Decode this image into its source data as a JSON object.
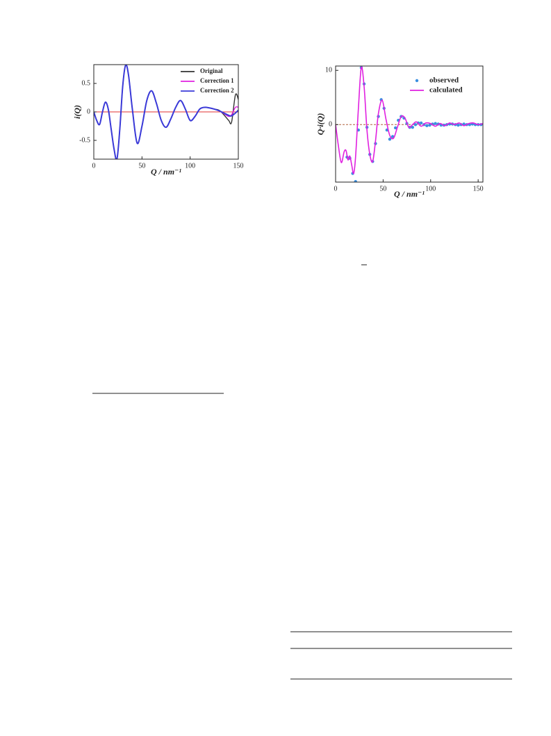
{
  "chart_data": [
    {
      "type": "line",
      "xlabel": "Q / nm⁻¹",
      "ylabel": "i(Q)",
      "xlim": [
        0,
        150
      ],
      "ylim": [
        -0.83,
        0.83
      ],
      "xticks": [
        0,
        50,
        100,
        150
      ],
      "yticks": [
        -0.5,
        0,
        0.5
      ],
      "hline": 0,
      "hline_color": "#e03030",
      "legend": "upper right",
      "series": [
        {
          "name": "Original",
          "color": "#333333",
          "mode": "line",
          "x": [
            0,
            3,
            6,
            9,
            12,
            15,
            18,
            21,
            24,
            27,
            30,
            33,
            36,
            40,
            45,
            50,
            55,
            60,
            65,
            70,
            75,
            80,
            85,
            90,
            95,
            100,
            105,
            110,
            115,
            120,
            125,
            130,
            135,
            140,
            143,
            147,
            150
          ],
          "values": [
            0,
            -0.15,
            -0.22,
            0,
            0.17,
            0.05,
            -0.3,
            -0.65,
            -0.83,
            -0.3,
            0.45,
            0.82,
            0.65,
            0.05,
            -0.55,
            -0.25,
            0.2,
            0.37,
            0.15,
            -0.15,
            -0.27,
            -0.12,
            0.08,
            0.2,
            0.05,
            -0.15,
            -0.08,
            0.05,
            0.08,
            0.07,
            0.05,
            0.03,
            -0.05,
            -0.15,
            -0.18,
            0.3,
            0.22
          ]
        },
        {
          "name": "Correction 1",
          "color": "#e020e0",
          "mode": "line",
          "x": [
            0,
            3,
            6,
            9,
            12,
            15,
            18,
            21,
            24,
            27,
            30,
            33,
            36,
            40,
            45,
            50,
            55,
            60,
            65,
            70,
            75,
            80,
            85,
            90,
            95,
            100,
            105,
            110,
            115,
            120,
            125,
            130,
            135,
            140,
            143,
            147,
            150
          ],
          "values": [
            0,
            -0.15,
            -0.22,
            0,
            0.17,
            0.05,
            -0.3,
            -0.65,
            -0.83,
            -0.3,
            0.45,
            0.82,
            0.65,
            0.05,
            -0.55,
            -0.25,
            0.2,
            0.37,
            0.15,
            -0.15,
            -0.27,
            -0.12,
            0.08,
            0.2,
            0.05,
            -0.15,
            -0.08,
            0.05,
            0.08,
            0.07,
            0.05,
            0.02,
            -0.03,
            -0.08,
            -0.05,
            0.08,
            0.08
          ]
        },
        {
          "name": "Correction 2",
          "color": "#3a3ad8",
          "mode": "line",
          "x": [
            0,
            3,
            6,
            9,
            12,
            15,
            18,
            21,
            24,
            27,
            30,
            33,
            36,
            40,
            45,
            50,
            55,
            60,
            65,
            70,
            75,
            80,
            85,
            90,
            95,
            100,
            105,
            110,
            115,
            120,
            125,
            130,
            135,
            140,
            143,
            147,
            150
          ],
          "values": [
            0,
            -0.15,
            -0.22,
            0,
            0.17,
            0.05,
            -0.3,
            -0.65,
            -0.83,
            -0.3,
            0.45,
            0.82,
            0.65,
            0.05,
            -0.55,
            -0.25,
            0.2,
            0.37,
            0.15,
            -0.15,
            -0.27,
            -0.12,
            0.08,
            0.2,
            0.05,
            -0.15,
            -0.08,
            0.05,
            0.08,
            0.07,
            0.05,
            0.02,
            -0.02,
            -0.06,
            -0.07,
            -0.02,
            0.03
          ]
        }
      ]
    },
    {
      "type": "line",
      "xlabel": "Q / nm⁻¹",
      "ylabel": "Q·i(Q)",
      "xlim": [
        0,
        155
      ],
      "ylim": [
        -10.6,
        10.8
      ],
      "xticks": [
        0,
        50,
        100,
        150
      ],
      "yticks": [
        0,
        10
      ],
      "hline": 0,
      "hline_color": "#b0603a",
      "legend": "upper right",
      "series": [
        {
          "name": "observed",
          "color": "#3b8fe0",
          "mode": "markers",
          "x": [
            12,
            15,
            18,
            21,
            24,
            27,
            30,
            33,
            36,
            39,
            42,
            45,
            48,
            51,
            54,
            57,
            60,
            63,
            66,
            69,
            72,
            75,
            78,
            81,
            84,
            87,
            90,
            93,
            96,
            99,
            102,
            105,
            108,
            111,
            114,
            117,
            120,
            123,
            126,
            129,
            132,
            135,
            138,
            141,
            144,
            147,
            150,
            153
          ],
          "values": [
            -6,
            -6.2,
            -9,
            -10.5,
            -1,
            10.5,
            7.5,
            -0.5,
            -5.5,
            -6.8,
            -3.5,
            1.5,
            4.6,
            3,
            -1,
            -2.7,
            -2.2,
            -0.6,
            0.8,
            1.5,
            1.2,
            0.2,
            -0.5,
            -0.5,
            0,
            0.3,
            0.3,
            0,
            -0.2,
            -0.1,
            0.1,
            0.2,
            0.1,
            -0.1,
            -0.1,
            0,
            0.1,
            0.1,
            0,
            -0.1,
            0,
            0.1,
            0,
            0,
            0.1,
            0,
            0,
            0
          ]
        },
        {
          "name": "calculated",
          "color": "#e020e0",
          "mode": "line",
          "x": [
            0,
            3,
            6,
            9,
            11,
            13,
            15,
            17,
            19,
            21,
            24,
            27,
            30,
            33,
            36,
            39,
            42,
            45,
            49,
            53,
            57,
            61,
            65,
            69,
            73,
            77,
            81,
            85,
            90,
            95,
            100,
            105,
            110,
            115,
            120,
            125,
            130,
            135,
            140,
            145,
            150,
            155
          ],
          "values": [
            0,
            -4,
            -7,
            -5,
            -4.8,
            -6.5,
            -5.8,
            -7.5,
            -9,
            -6,
            3,
            10.5,
            7,
            -1,
            -5.5,
            -6.8,
            -3,
            2,
            4.5,
            1,
            -2,
            -2.5,
            -0.5,
            1.5,
            1.2,
            -0.5,
            0,
            0.5,
            -0.3,
            0.3,
            0.2,
            -0.3,
            0.2,
            -0.2,
            0.3,
            0,
            0.3,
            -0.2,
            0.2,
            0.3,
            0,
            0.2
          ]
        }
      ]
    }
  ]
}
